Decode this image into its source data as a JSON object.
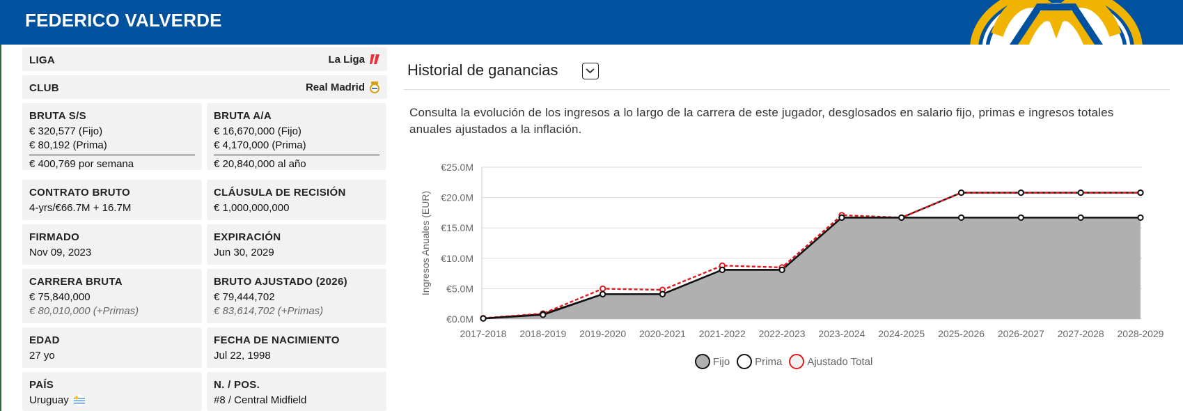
{
  "header": {
    "player_name": "FEDERICO VALVERDE"
  },
  "info": {
    "liga": {
      "label": "LIGA",
      "value": "La Liga"
    },
    "club": {
      "label": "CLUB",
      "value": "Real Madrid"
    },
    "bruta_ss": {
      "label": "BRUTA S/S",
      "fijo": "€ 320,577 (Fijo)",
      "prima": "€ 80,192 (Prima)",
      "total": "€ 400,769 por semana"
    },
    "bruta_aa": {
      "label": "BRUTA A/A",
      "fijo": "€ 16,670,000 (Fijo)",
      "prima": "€ 4,170,000 (Prima)",
      "total": "€ 20,840,000 al año"
    },
    "contrato": {
      "label": "CONTRATO BRUTO",
      "value": "4-yrs/€66.7M + 16.7M"
    },
    "clausula": {
      "label": "CLÁUSULA DE RECISIÓN",
      "value": "€ 1,000,000,000"
    },
    "firmado": {
      "label": "FIRMADO",
      "value": "Nov 09, 2023"
    },
    "expiracion": {
      "label": "EXPIRACIÓN",
      "value": "Jun 30, 2029"
    },
    "carrera": {
      "label": "CARRERA BRUTA",
      "value": "€ 75,840,000",
      "primas": "€ 80,010,000 (+Primas)"
    },
    "ajustado": {
      "label": "BRUTO AJUSTADO (2026)",
      "value": "€ 79,444,702",
      "primas": "€ 83,614,702 (+Primas)"
    },
    "edad": {
      "label": "EDAD",
      "value": "27 yo"
    },
    "nacimiento": {
      "label": "FECHA DE NACIMIENTO",
      "value": "Jul 22, 1998"
    },
    "pais": {
      "label": "PAÍS",
      "value": "Uruguay"
    },
    "pos": {
      "label": "N. / POS.",
      "value": "#8 / Central Midfield"
    }
  },
  "panel": {
    "title": "Historial de ganancias",
    "description": "Consulta la evolución de los ingresos a lo largo de la carrera de este jugador, desglosados en salario fijo, primas e ingresos totales anuales ajustados a la inflación."
  },
  "chart_data": {
    "type": "area",
    "ylabel": "Ingresos Anuales (EUR)",
    "xlabel": "",
    "y_ticks": [
      "€0.0M",
      "€5.0M",
      "€10.0M",
      "€15.0M",
      "€20.0M",
      "€25.0M"
    ],
    "ylim": [
      0,
      25
    ],
    "grid": true,
    "legend_position": "bottom",
    "categories": [
      "2017-2018",
      "2018-2019",
      "2019-2020",
      "2020-2021",
      "2021-2022",
      "2022-2023",
      "2023-2024",
      "2024-2025",
      "2025-2026",
      "2026-2027",
      "2027-2028",
      "2028-2029"
    ],
    "series": [
      {
        "name": "Fijo",
        "color": "#111111",
        "fill": "#b0b0b0",
        "values": [
          0.1,
          0.7,
          4.1,
          4.1,
          8.1,
          8.1,
          16.7,
          16.7,
          16.7,
          16.7,
          16.7,
          16.7
        ]
      },
      {
        "name": "Prima",
        "color": "#111111",
        "values": [
          0.1,
          0.8,
          4.1,
          4.1,
          8.1,
          8.1,
          16.7,
          16.7,
          20.8,
          20.8,
          20.8,
          20.8
        ]
      },
      {
        "name": "Ajustado Total",
        "color": "#e0191e",
        "values": [
          0.15,
          0.9,
          5.0,
          4.8,
          8.8,
          8.5,
          17.1,
          16.7,
          20.8,
          20.8,
          20.8,
          20.8
        ]
      }
    ]
  },
  "legend": {
    "fijo": "Fijo",
    "prima": "Prima",
    "ajustado": "Ajustado Total"
  }
}
